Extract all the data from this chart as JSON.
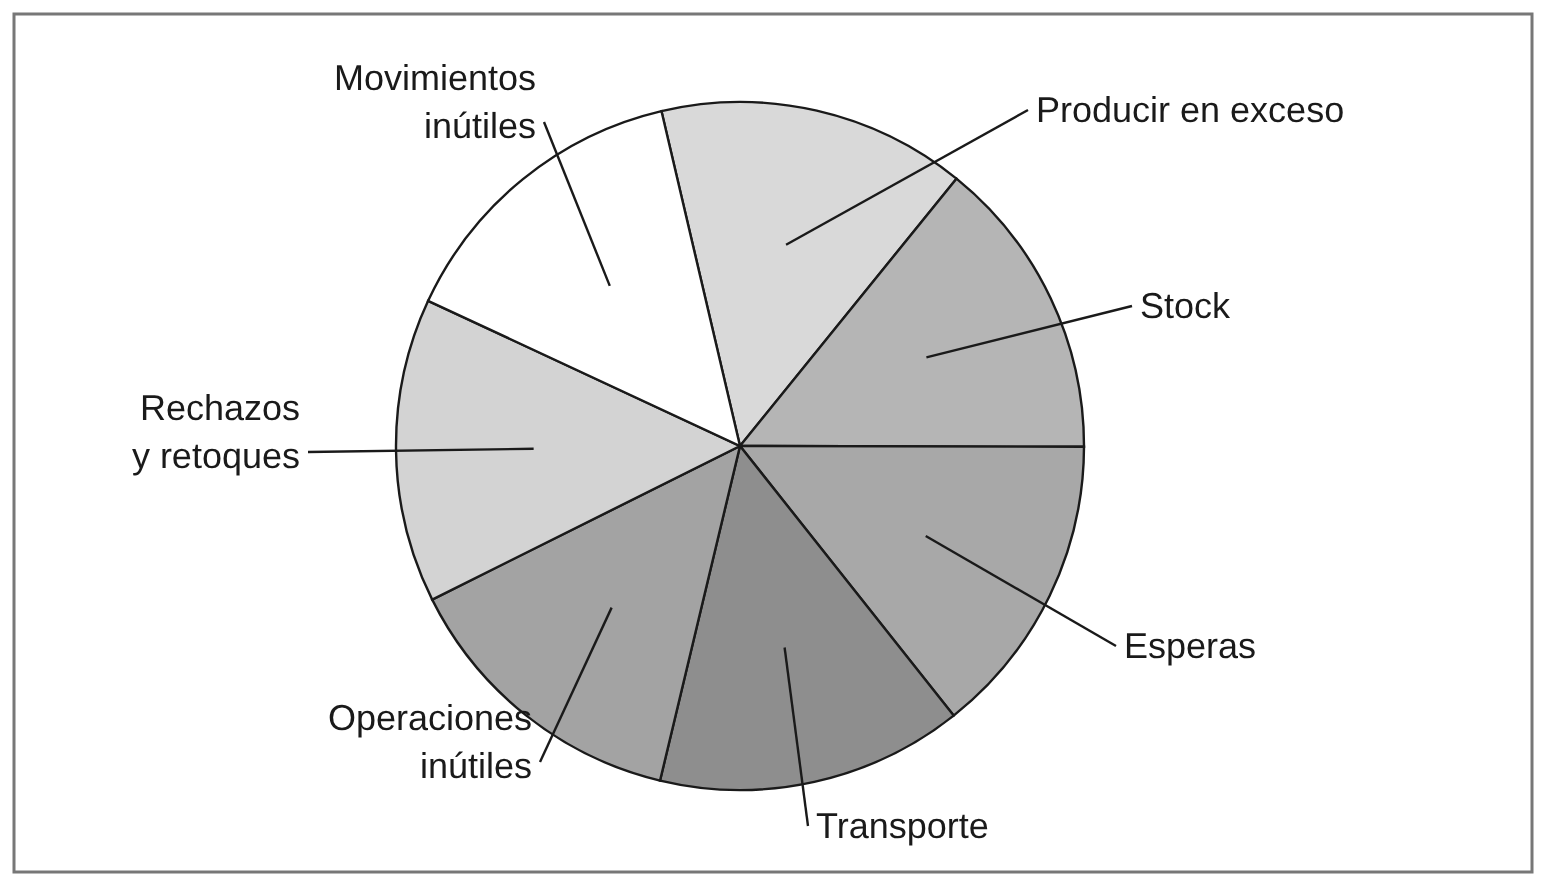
{
  "chart_data": {
    "type": "pie",
    "categories": [
      "Producir en exceso",
      "Stock",
      "Esperas",
      "Transporte",
      "Operaciones inútiles",
      "Rechazos y retoques",
      "Movimientos inútiles"
    ],
    "values": [
      14.5,
      14.2,
      14.3,
      14.4,
      13.9,
      14.3,
      14.4
    ],
    "colors": [
      "#d9d9d9",
      "#b5b5b5",
      "#a8a8a8",
      "#8e8e8e",
      "#a3a3a3",
      "#d3d3d3",
      "#ffffff"
    ]
  }
}
